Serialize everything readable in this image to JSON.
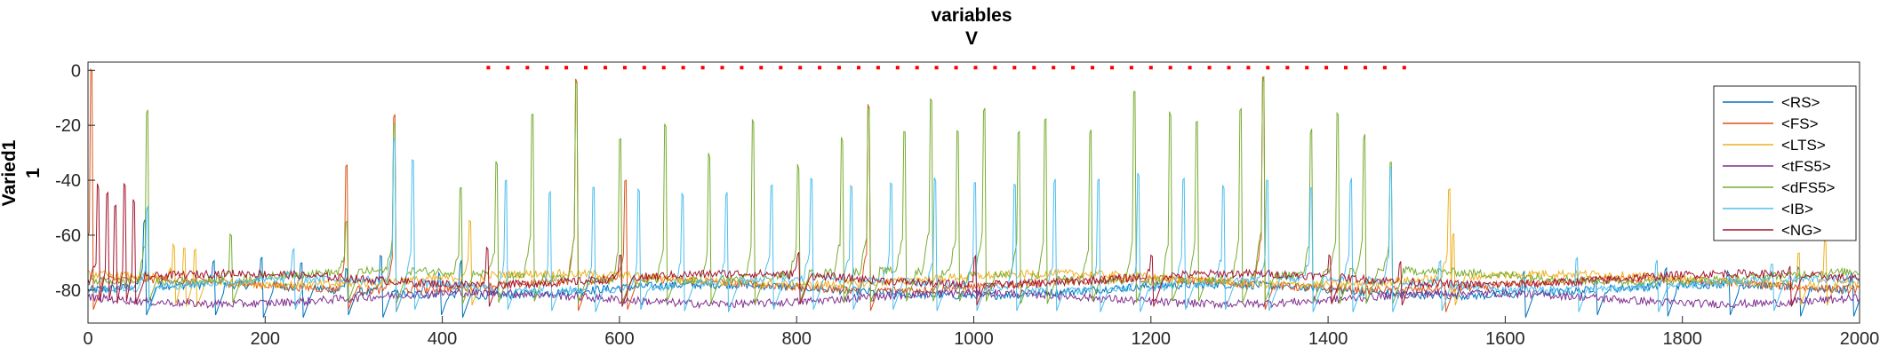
{
  "chart_data": {
    "type": "line",
    "title": "variables",
    "subtitle": "V",
    "ylabel_line1": "Varied1",
    "ylabel_line2": "1",
    "xlim": [
      0,
      2000
    ],
    "ylim": [
      -92,
      3
    ],
    "xticks": [
      "0",
      "200",
      "400",
      "600",
      "800",
      "1000",
      "1200",
      "1400",
      "1600",
      "1800",
      "2000"
    ],
    "yticks": [
      "0",
      "-20",
      "-40",
      "-60",
      "-80"
    ],
    "legend_position": "top-right",
    "series": [
      {
        "name": "<RS>",
        "color": "#0072BD",
        "baseline": -80,
        "spikes": [
          [
            62,
            -55
          ],
          [
            140,
            -70
          ],
          [
            195,
            -68
          ],
          [
            240,
            -70
          ],
          [
            290,
            -72
          ],
          [
            330,
            -68
          ],
          [
            395,
            -74
          ],
          [
            420,
            -70
          ],
          [
            1620,
            -74
          ],
          [
            1700,
            -76
          ],
          [
            1780,
            -72
          ],
          [
            1850,
            -74
          ],
          [
            1930,
            -72
          ],
          [
            1990,
            -74
          ]
        ]
      },
      {
        "name": "<FS>",
        "color": "#D95319",
        "baseline": -78,
        "spikes": [
          [
            2,
            0
          ],
          [
            290,
            -34
          ],
          [
            345,
            -17
          ],
          [
            550,
            -4
          ],
          [
            605,
            -40
          ],
          [
            880,
            -13
          ],
          [
            1325,
            -3
          ],
          [
            1530,
            -78
          ]
        ]
      },
      {
        "name": "<LTS>",
        "color": "#EDB120",
        "baseline": -76,
        "spikes": [
          [
            95,
            -64
          ],
          [
            108,
            -64
          ],
          [
            120,
            -66
          ],
          [
            430,
            -55
          ],
          [
            1535,
            -45
          ],
          [
            1540,
            -60
          ],
          [
            1930,
            -66
          ],
          [
            1960,
            -62
          ]
        ]
      },
      {
        "name": "<tFS5>",
        "color": "#7E2F8E",
        "baseline": -83,
        "spikes": []
      },
      {
        "name": "<dFS5>",
        "color": "#77AC30",
        "baseline": -75,
        "spikes": [
          [
            65,
            -15
          ],
          [
            160,
            -60
          ],
          [
            290,
            -55
          ],
          [
            345,
            -20
          ],
          [
            420,
            -42
          ],
          [
            460,
            -34
          ],
          [
            500,
            -16
          ],
          [
            550,
            -4
          ],
          [
            600,
            -25
          ],
          [
            650,
            -20
          ],
          [
            700,
            -31
          ],
          [
            750,
            -18
          ],
          [
            800,
            -35
          ],
          [
            850,
            -25
          ],
          [
            880,
            -13
          ],
          [
            920,
            -22
          ],
          [
            950,
            -10
          ],
          [
            980,
            -22
          ],
          [
            1010,
            -14
          ],
          [
            1050,
            -22
          ],
          [
            1080,
            -18
          ],
          [
            1130,
            -22
          ],
          [
            1180,
            -7
          ],
          [
            1220,
            -16
          ],
          [
            1250,
            -18
          ],
          [
            1300,
            -14
          ],
          [
            1325,
            -3
          ],
          [
            1380,
            -22
          ],
          [
            1410,
            -16
          ],
          [
            1440,
            -24
          ],
          [
            1470,
            -34
          ]
        ]
      },
      {
        "name": "<IB>",
        "color": "#4DBEEE",
        "baseline": -78,
        "spikes": [
          [
            65,
            -50
          ],
          [
            230,
            -65
          ],
          [
            345,
            -25
          ],
          [
            365,
            -33
          ],
          [
            470,
            -40
          ],
          [
            520,
            -45
          ],
          [
            570,
            -42
          ],
          [
            620,
            -44
          ],
          [
            670,
            -45
          ],
          [
            720,
            -45
          ],
          [
            770,
            -42
          ],
          [
            815,
            -40
          ],
          [
            860,
            -42
          ],
          [
            905,
            -41
          ],
          [
            955,
            -40
          ],
          [
            1000,
            -40
          ],
          [
            1045,
            -41
          ],
          [
            1090,
            -40
          ],
          [
            1140,
            -40
          ],
          [
            1185,
            -38
          ],
          [
            1235,
            -40
          ],
          [
            1280,
            -42
          ],
          [
            1330,
            -41
          ],
          [
            1380,
            -43
          ],
          [
            1425,
            -40
          ],
          [
            1470,
            -35
          ],
          [
            1525,
            -70
          ],
          [
            1680,
            -68
          ],
          [
            1770,
            -70
          ],
          [
            1900,
            -70
          ]
        ]
      },
      {
        "name": "<NG>",
        "color": "#A2142F",
        "baseline": -76,
        "spikes": [
          [
            10,
            -42
          ],
          [
            20,
            -45
          ],
          [
            30,
            -50
          ],
          [
            40,
            -42
          ],
          [
            50,
            -48
          ],
          [
            450,
            -65
          ],
          [
            600,
            -67
          ],
          [
            800,
            -67
          ],
          [
            1000,
            -68
          ],
          [
            1200,
            -68
          ],
          [
            1400,
            -68
          ],
          [
            1480,
            -70
          ],
          [
            1920,
            -72
          ]
        ]
      }
    ],
    "markers": {
      "color": "#FF0000",
      "y": 1,
      "x": [
        452,
        474,
        496,
        518,
        540,
        562,
        584,
        606,
        628,
        650,
        672,
        694,
        716,
        738,
        760,
        782,
        804,
        826,
        848,
        870,
        892,
        914,
        936,
        958,
        980,
        1002,
        1024,
        1046,
        1068,
        1090,
        1112,
        1134,
        1156,
        1178,
        1200,
        1222,
        1244,
        1266,
        1288,
        1310,
        1332,
        1354,
        1376,
        1398,
        1420,
        1442,
        1464,
        1486
      ]
    }
  }
}
